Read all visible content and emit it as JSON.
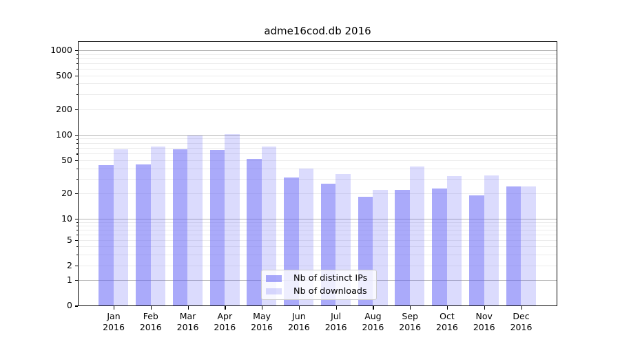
{
  "title": "adme16cod.db 2016",
  "chart_data": {
    "type": "bar",
    "title": "adme16cod.db 2016",
    "months": [
      "Jan",
      "Feb",
      "Mar",
      "Apr",
      "May",
      "Jun",
      "Jul",
      "Aug",
      "Sep",
      "Oct",
      "Nov",
      "Dec"
    ],
    "year": "2016",
    "series": [
      {
        "name": "Nb of distinct IPs",
        "color": "rgba(100,100,245,0.55)",
        "values": [
          44,
          45,
          68,
          66,
          52,
          31,
          26,
          18,
          22,
          23,
          19,
          24
        ]
      },
      {
        "name": "Nb of downloads",
        "color": "rgba(100,100,245,0.23)",
        "values": [
          67,
          73,
          98,
          101,
          73,
          40,
          34,
          22,
          42,
          32,
          33,
          24
        ]
      }
    ],
    "y_ticks": [
      0,
      1,
      2,
      5,
      10,
      20,
      50,
      100,
      200,
      500,
      1000
    ],
    "yscale": "log (compressed linear segment from 0 to 1)",
    "ylim": [
      0,
      1285
    ],
    "grid": "major horizontal at 1,10,100,1000; faint minors between",
    "legend_position": "lower center",
    "xlabel": "",
    "ylabel": ""
  },
  "colors": {
    "bar_distinct_ips": "#a9a9f7",
    "bar_downloads": "#dbdbf9",
    "grid_major": "#b3b3b3",
    "grid_minor": "#ebebeb",
    "axis": "#000000",
    "legend_border": "#cccccc"
  }
}
